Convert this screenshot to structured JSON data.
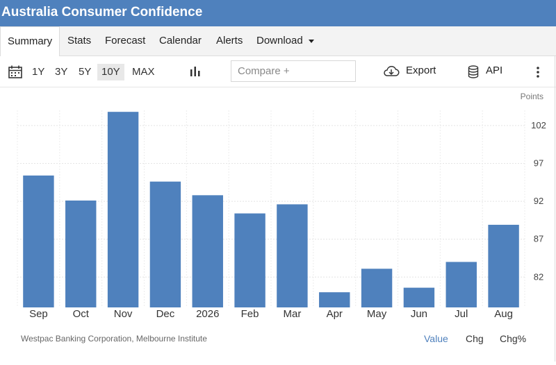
{
  "header": {
    "title": "Australia Consumer Confidence"
  },
  "tabs": [
    {
      "label": "Summary"
    },
    {
      "label": "Stats"
    },
    {
      "label": "Forecast"
    },
    {
      "label": "Calendar"
    },
    {
      "label": "Alerts"
    },
    {
      "label": "Download"
    }
  ],
  "toolbar": {
    "ranges": [
      "1Y",
      "3Y",
      "5Y",
      "10Y",
      "MAX"
    ],
    "selected_range": "10Y",
    "compare_placeholder": "Compare +",
    "export_label": "Export",
    "api_label": "API"
  },
  "footer": {
    "source": "Westpac Banking Corporation, Melbourne Institute",
    "value_label": "Value",
    "chg_label": "Chg",
    "chgpct_label": "Chg%"
  },
  "colors": {
    "accent": "#4f81bd",
    "bar": "#4f81bd"
  },
  "chart_data": {
    "type": "bar",
    "unit_label": "Points",
    "categories": [
      "Sep",
      "Oct",
      "Nov",
      "Dec",
      "2026",
      "Feb",
      "Mar",
      "Apr",
      "May",
      "Jun",
      "Jul",
      "Aug"
    ],
    "values": [
      95.4,
      92.1,
      103.8,
      94.6,
      92.8,
      90.4,
      91.6,
      80.0,
      83.1,
      80.6,
      84.0,
      88.9
    ],
    "ylim": [
      78,
      104
    ],
    "yticks": [
      82,
      87,
      92,
      97,
      102
    ],
    "grid": true
  }
}
